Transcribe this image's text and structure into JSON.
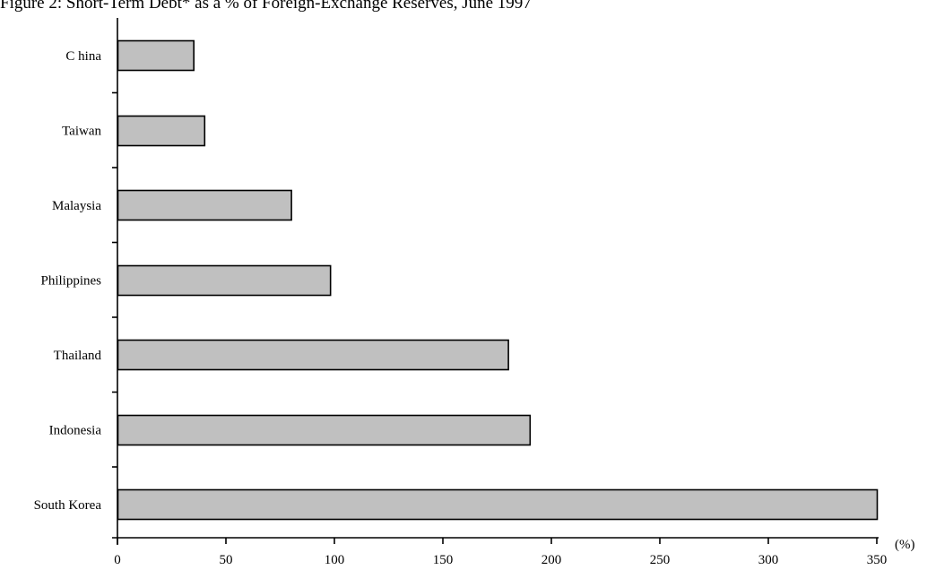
{
  "chart_data": {
    "type": "bar",
    "orientation": "horizontal",
    "title": "Figure 2: Short-Term Debt* as a % of Foreign-Exchange Reserves, June 1997",
    "unit_label": "(%)",
    "categories": [
      "C hina",
      "Taiwan",
      "Malaysia",
      "Philippines",
      "Thailand",
      "Indonesia",
      "South Korea"
    ],
    "values": [
      35,
      40,
      80,
      98,
      180,
      190,
      350
    ],
    "xlim": [
      0,
      350
    ],
    "xticks": [
      0,
      50,
      100,
      150,
      200,
      250,
      300,
      350
    ],
    "grid": false,
    "bar_color": "#c0c0c0",
    "edge_color": "#000000"
  }
}
